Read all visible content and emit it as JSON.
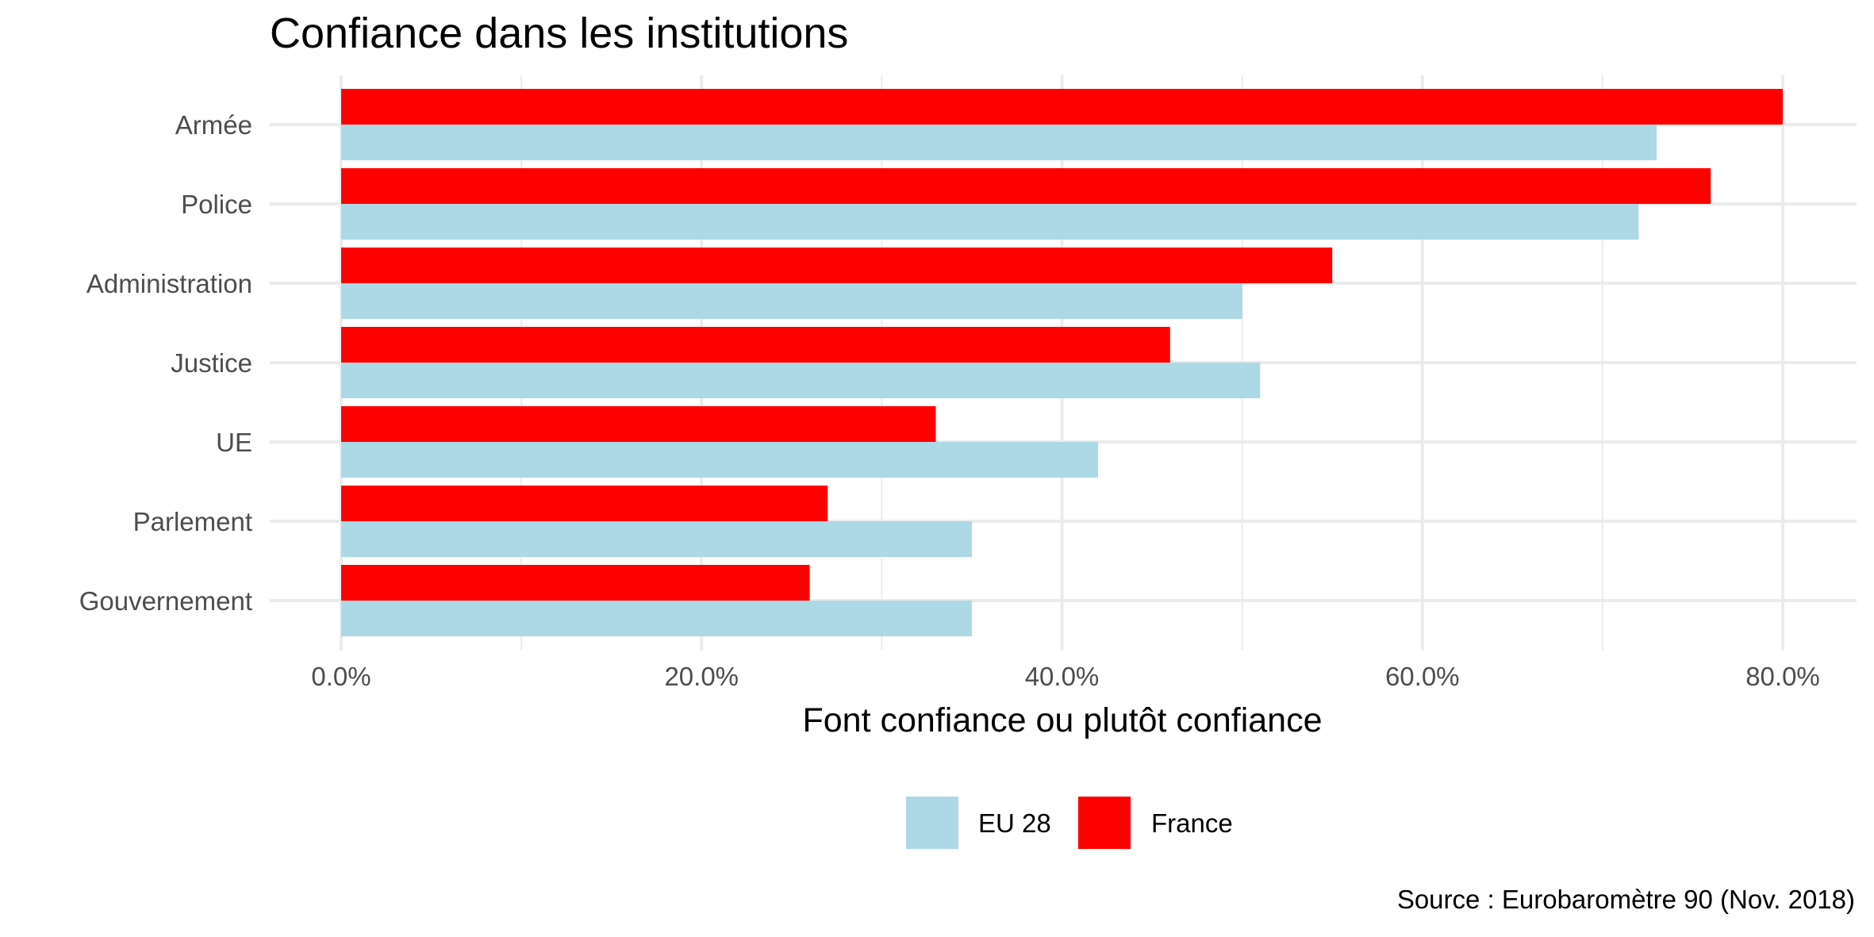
{
  "chart_data": {
    "type": "bar",
    "orientation": "horizontal",
    "title": "Confiance dans les institutions",
    "xlabel": "Font confiance ou plutôt confiance",
    "ylabel": "",
    "caption": "Source : Eurobaromètre 90 (Nov. 2018)",
    "xlim": [
      0,
      0.8
    ],
    "x_ticks": [
      {
        "value": 0.0,
        "label": "0.0%"
      },
      {
        "value": 0.2,
        "label": "20.0%"
      },
      {
        "value": 0.4,
        "label": "40.0%"
      },
      {
        "value": 0.6,
        "label": "60.0%"
      },
      {
        "value": 0.8,
        "label": "80.0%"
      }
    ],
    "categories": [
      "Armée",
      "Police",
      "Administration",
      "Justice",
      "UE",
      "Parlement",
      "Gouvernement"
    ],
    "series": [
      {
        "name": "EU 28",
        "color": "#add8e6",
        "values": [
          0.73,
          0.72,
          0.5,
          0.51,
          0.42,
          0.35,
          0.35
        ]
      },
      {
        "name": "France",
        "color": "#ff0000",
        "values": [
          0.8,
          0.76,
          0.55,
          0.46,
          0.33,
          0.27,
          0.26
        ]
      }
    ],
    "grid": true,
    "legend_position": "bottom"
  }
}
